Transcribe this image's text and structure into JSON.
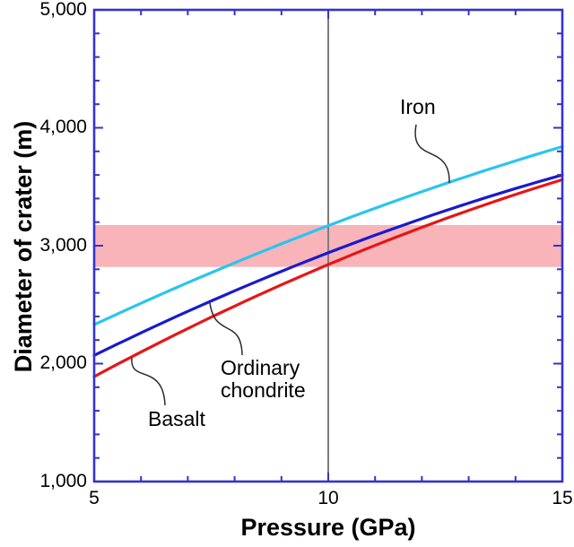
{
  "figure": {
    "background": "#ffffff",
    "text_color": "#000000"
  },
  "chart_data": {
    "type": "line",
    "title": "",
    "xlabel": "Pressure (GPa)",
    "ylabel": "Diameter of crater (m)",
    "xlim": [
      5,
      15
    ],
    "ylim": [
      1000,
      5000
    ],
    "x_major_ticks": [
      5,
      10,
      15
    ],
    "x_minor_step": 1,
    "y_major_ticks": [
      1000,
      2000,
      3000,
      4000,
      5000
    ],
    "y_minor_step": 200,
    "x_ticklabels": [
      "5",
      "10",
      "15"
    ],
    "y_ticklabels": [
      "1,000",
      "2,000",
      "3,000",
      "4,000",
      "5,000"
    ],
    "grid": false,
    "legend": "inline annotations with curly leader lines",
    "frame_color": "#3333cc",
    "x": [
      5,
      10,
      15
    ],
    "series": [
      {
        "name": "Iron",
        "color": "#29c5f0",
        "values": [
          2330,
          3170,
          3840
        ]
      },
      {
        "name": "Ordinary chondrite",
        "color": "#1a1acd",
        "values": [
          2070,
          2940,
          3600
        ]
      },
      {
        "name": "Basalt",
        "color": "#e81515",
        "values": [
          1890,
          2840,
          3560
        ]
      }
    ],
    "highlight_band": {
      "ymin": 2820,
      "ymax": 3175,
      "color": "#f8b4b9"
    },
    "vertical_line": {
      "x": 10,
      "color": "#7d7d7d"
    }
  },
  "annotations": {
    "iron": {
      "text": "Iron"
    },
    "ordinary_chondrite": {
      "line1": "Ordinary",
      "line2": "chondrite"
    },
    "basalt": {
      "text": "Basalt"
    }
  }
}
